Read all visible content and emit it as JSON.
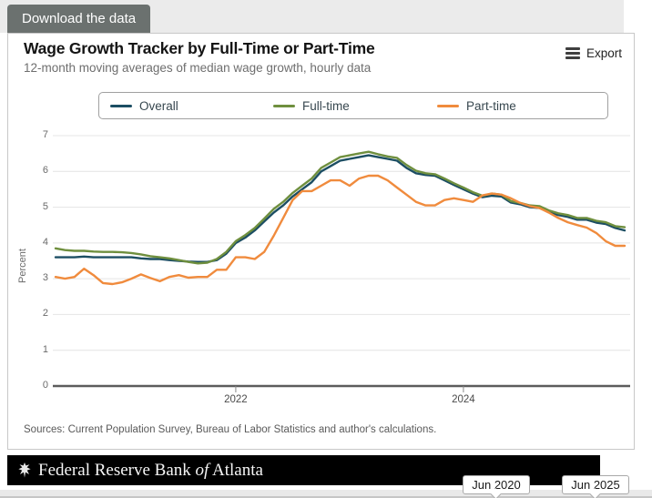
{
  "page": {
    "download_button": "Download the data",
    "footer": {
      "prefix": "Federal Reserve Bank",
      "of": "of",
      "suffix": "Atlanta"
    },
    "range_handles": {
      "start": "Jun 2020",
      "end": "Jun 2025"
    }
  },
  "chart": {
    "title": "Wage Growth Tracker by Full-Time or Part-Time",
    "subtitle": "12-month moving averages of median wage growth, hourly data",
    "export_label": "Export",
    "y_axis_title": "Percent",
    "source_note": "Sources: Current Population Survey, Bureau of Labor Statistics and author's calculations."
  },
  "chart_data": {
    "type": "line",
    "title": "Wage Growth Tracker by Full-Time or Part-Time",
    "subtitle": "12-month moving averages of median wage growth, hourly data",
    "ylabel": "Percent",
    "ylim": [
      0,
      7
    ],
    "y_ticks": [
      0,
      1,
      2,
      3,
      4,
      5,
      6,
      7
    ],
    "x_ticks": [
      "2022",
      "2024"
    ],
    "grid": true,
    "legend_position": "top",
    "x_range": [
      "Jun 2020",
      "Jun 2025"
    ],
    "x": [
      "2020-06",
      "2020-07",
      "2020-08",
      "2020-09",
      "2020-10",
      "2020-11",
      "2020-12",
      "2021-01",
      "2021-02",
      "2021-03",
      "2021-04",
      "2021-05",
      "2021-06",
      "2021-07",
      "2021-08",
      "2021-09",
      "2021-10",
      "2021-11",
      "2021-12",
      "2022-01",
      "2022-02",
      "2022-03",
      "2022-04",
      "2022-05",
      "2022-06",
      "2022-07",
      "2022-08",
      "2022-09",
      "2022-10",
      "2022-11",
      "2022-12",
      "2023-01",
      "2023-02",
      "2023-03",
      "2023-04",
      "2023-05",
      "2023-06",
      "2023-07",
      "2023-08",
      "2023-09",
      "2023-10",
      "2023-11",
      "2023-12",
      "2024-01",
      "2024-02",
      "2024-03",
      "2024-04",
      "2024-05",
      "2024-06",
      "2024-07",
      "2024-08",
      "2024-09",
      "2024-10",
      "2024-11",
      "2024-12",
      "2025-01",
      "2025-02",
      "2025-03",
      "2025-04",
      "2025-05",
      "2025-06"
    ],
    "series": [
      {
        "name": "Overall",
        "color": "#1c4e63",
        "values": [
          3.6,
          3.6,
          3.6,
          3.62,
          3.6,
          3.6,
          3.6,
          3.6,
          3.6,
          3.57,
          3.55,
          3.55,
          3.52,
          3.5,
          3.48,
          3.47,
          3.47,
          3.52,
          3.7,
          4.0,
          4.15,
          4.35,
          4.6,
          4.85,
          5.05,
          5.3,
          5.5,
          5.7,
          6.0,
          6.15,
          6.3,
          6.35,
          6.4,
          6.45,
          6.4,
          6.35,
          6.3,
          6.1,
          5.95,
          5.9,
          5.88,
          5.75,
          5.62,
          5.5,
          5.38,
          5.28,
          5.32,
          5.3,
          5.13,
          5.08,
          5.0,
          4.98,
          4.87,
          4.78,
          4.73,
          4.65,
          4.65,
          4.57,
          4.53,
          4.42,
          4.35
        ]
      },
      {
        "name": "Full-time",
        "color": "#6f8f3e",
        "values": [
          3.85,
          3.8,
          3.78,
          3.78,
          3.76,
          3.75,
          3.75,
          3.74,
          3.72,
          3.68,
          3.63,
          3.6,
          3.57,
          3.52,
          3.47,
          3.43,
          3.45,
          3.55,
          3.75,
          4.05,
          4.22,
          4.42,
          4.68,
          4.95,
          5.15,
          5.4,
          5.6,
          5.8,
          6.1,
          6.25,
          6.4,
          6.45,
          6.5,
          6.55,
          6.48,
          6.42,
          6.38,
          6.18,
          6.02,
          5.95,
          5.92,
          5.8,
          5.67,
          5.55,
          5.42,
          5.32,
          5.38,
          5.35,
          5.17,
          5.12,
          5.05,
          5.03,
          4.91,
          4.83,
          4.78,
          4.7,
          4.7,
          4.62,
          4.58,
          4.47,
          4.44
        ]
      },
      {
        "name": "Part-time",
        "color": "#f08b3d",
        "values": [
          3.05,
          3.0,
          3.05,
          3.28,
          3.1,
          2.88,
          2.85,
          2.9,
          3.0,
          3.12,
          3.02,
          2.93,
          3.05,
          3.1,
          3.03,
          3.05,
          3.05,
          3.25,
          3.25,
          3.6,
          3.6,
          3.55,
          3.75,
          4.2,
          4.7,
          5.2,
          5.45,
          5.45,
          5.6,
          5.75,
          5.75,
          5.6,
          5.8,
          5.88,
          5.88,
          5.75,
          5.55,
          5.35,
          5.15,
          5.05,
          5.05,
          5.2,
          5.25,
          5.2,
          5.15,
          5.33,
          5.38,
          5.35,
          5.25,
          5.12,
          5.03,
          4.98,
          4.85,
          4.7,
          4.58,
          4.5,
          4.43,
          4.28,
          4.05,
          3.92,
          3.92
        ]
      }
    ]
  }
}
